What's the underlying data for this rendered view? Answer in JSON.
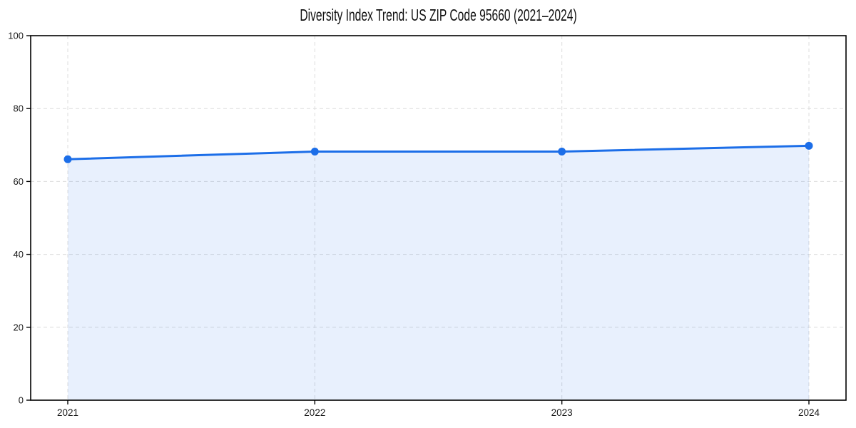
{
  "chart_data": {
    "type": "area",
    "title": "Diversity Index Trend: US ZIP Code 95660 (2021–2024)",
    "categories": [
      "2021",
      "2022",
      "2023",
      "2024"
    ],
    "values": [
      66.1,
      68.2,
      68.2,
      69.8
    ],
    "xlabel": "",
    "ylabel": "",
    "ylim": [
      0,
      100
    ],
    "yticks": [
      0,
      20,
      40,
      60,
      80,
      100
    ],
    "grid": true,
    "grid_style": "dashed",
    "legend": "none",
    "colors": {
      "line": "#1c6ee8",
      "marker": "#1c6ee8",
      "fill": "rgba(28,110,232,0.10)",
      "grid": "#dcdcdc",
      "axis": "#000000",
      "tick_text": "#1a1a1a",
      "background": "#ffffff"
    }
  }
}
